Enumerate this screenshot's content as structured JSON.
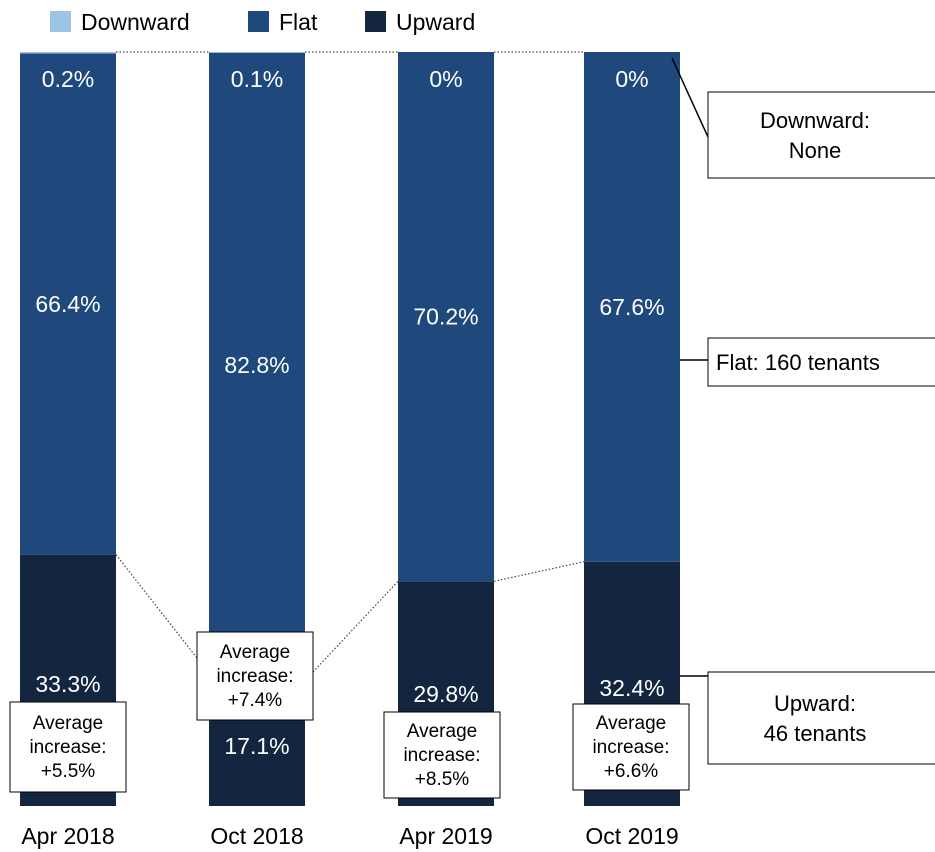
{
  "chart_data": {
    "type": "bar",
    "stacked": true,
    "orientation": "vertical",
    "normalized_percent": true,
    "categories": [
      "Apr 2018",
      "Oct 2018",
      "Apr 2019",
      "Oct 2019"
    ],
    "series": [
      {
        "name": "Downward",
        "values": [
          0.2,
          0.1,
          0,
          0
        ],
        "labels": [
          "0.2%",
          "0.1%",
          "0%",
          "0%"
        ],
        "color": "#9dc3e6"
      },
      {
        "name": "Flat",
        "values": [
          66.4,
          82.8,
          70.2,
          67.6
        ],
        "labels": [
          "66.4%",
          "82.8%",
          "70.2%",
          "67.6%"
        ],
        "color": "#1f497d"
      },
      {
        "name": "Upward",
        "values": [
          33.3,
          17.1,
          29.8,
          32.4
        ],
        "labels": [
          "33.3%",
          "17.1%",
          "29.8%",
          "32.4%"
        ],
        "color": "#14263f"
      }
    ],
    "stack_order_bottom_to_top": [
      "Upward",
      "Flat",
      "Downward"
    ],
    "legend": {
      "position": "top-left",
      "entries": [
        "Downward",
        "Flat",
        "Upward"
      ]
    },
    "average_increase_boxes": [
      [
        "Average",
        "increase:",
        "+5.5%"
      ],
      [
        "Average",
        "increase:",
        "+7.4%"
      ],
      [
        "Average",
        "increase:",
        "+8.5%"
      ],
      [
        "Average",
        "increase:",
        "+6.6%"
      ]
    ],
    "callouts": [
      {
        "series": "Downward",
        "lines": [
          "Downward:",
          "None"
        ]
      },
      {
        "series": "Flat",
        "lines": [
          "Flat: 160 tenants"
        ]
      },
      {
        "series": "Upward",
        "lines": [
          "Upward:",
          "46 tenants"
        ]
      }
    ],
    "connector_lines": "dotted lines linking the Upward/Flat boundary and the chart top between adjacent bars",
    "grid": false,
    "axes_visible": false
  }
}
